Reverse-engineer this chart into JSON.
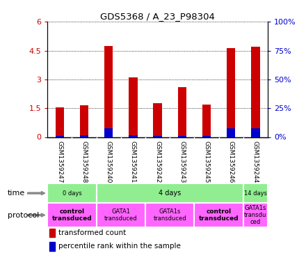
{
  "title": "GDS5368 / A_23_P98304",
  "samples": [
    "GSM1359247",
    "GSM1359248",
    "GSM1359240",
    "GSM1359241",
    "GSM1359242",
    "GSM1359243",
    "GSM1359245",
    "GSM1359246",
    "GSM1359244"
  ],
  "red_values": [
    1.55,
    1.65,
    4.75,
    3.1,
    1.75,
    2.6,
    1.7,
    4.65,
    4.7
  ],
  "blue_values": [
    0.05,
    0.08,
    0.45,
    0.1,
    0.05,
    0.05,
    0.05,
    0.45,
    0.45
  ],
  "ylim_left": [
    0,
    6
  ],
  "ylim_right": [
    0,
    100
  ],
  "yticks_left": [
    0,
    1.5,
    3.0,
    4.5,
    6
  ],
  "yticks_right": [
    0,
    25,
    50,
    75,
    100
  ],
  "ytick_labels_left": [
    "0",
    "1.5",
    "3",
    "4.5",
    "6"
  ],
  "ytick_labels_right": [
    "0%",
    "25%",
    "50%",
    "75%",
    "100%"
  ],
  "bar_color_red": "#CC0000",
  "bar_color_blue": "#0000CC",
  "bar_width": 0.35,
  "bg_color": "#FFFFFF",
  "sample_bg_color": "#C8C8C8",
  "green_color": "#90EE90",
  "proto_color": "#FF66FF",
  "grid_color": "#000000"
}
